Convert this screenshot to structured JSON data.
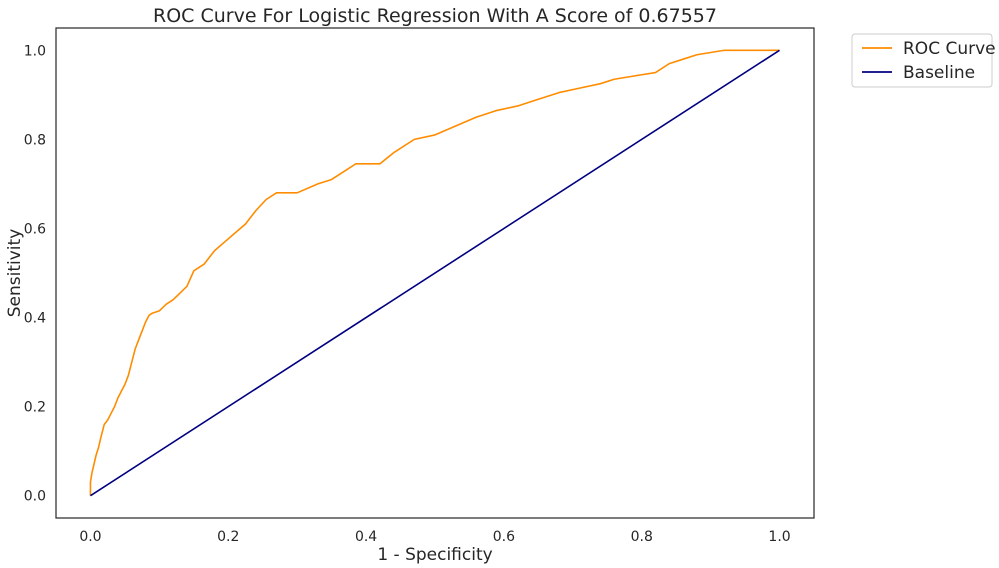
{
  "chart_data": {
    "type": "line",
    "title": "ROC Curve For Logistic Regression With A Score of 0.67557",
    "xlabel": "1 - Specificity",
    "ylabel": "Sensitivity",
    "xlim": [
      -0.05,
      1.05
    ],
    "ylim": [
      -0.05,
      1.05
    ],
    "xticks": [
      "0.0",
      "0.2",
      "0.4",
      "0.6",
      "0.8",
      "1.0"
    ],
    "yticks": [
      "0.0",
      "0.2",
      "0.4",
      "0.6",
      "0.8",
      "1.0"
    ],
    "grid": false,
    "legend_placement": "outside-top-right",
    "series": [
      {
        "name": "ROC Curve",
        "color": "#ff8c00",
        "x": [
          0.0,
          0.0,
          0.002,
          0.005,
          0.008,
          0.012,
          0.015,
          0.02,
          0.025,
          0.03,
          0.035,
          0.04,
          0.045,
          0.05,
          0.055,
          0.06,
          0.065,
          0.07,
          0.075,
          0.08,
          0.085,
          0.09,
          0.1,
          0.11,
          0.12,
          0.13,
          0.14,
          0.15,
          0.165,
          0.18,
          0.195,
          0.21,
          0.225,
          0.24,
          0.255,
          0.27,
          0.3,
          0.33,
          0.35,
          0.37,
          0.385,
          0.42,
          0.44,
          0.47,
          0.5,
          0.53,
          0.56,
          0.59,
          0.62,
          0.65,
          0.68,
          0.71,
          0.74,
          0.76,
          0.78,
          0.8,
          0.82,
          0.84,
          0.86,
          0.88,
          0.9,
          0.92,
          0.95,
          0.97,
          0.985,
          1.0
        ],
        "y": [
          0.0,
          0.03,
          0.05,
          0.07,
          0.09,
          0.11,
          0.13,
          0.16,
          0.17,
          0.185,
          0.2,
          0.22,
          0.235,
          0.25,
          0.27,
          0.3,
          0.33,
          0.35,
          0.37,
          0.39,
          0.405,
          0.41,
          0.415,
          0.43,
          0.44,
          0.455,
          0.47,
          0.505,
          0.52,
          0.55,
          0.57,
          0.59,
          0.61,
          0.64,
          0.665,
          0.68,
          0.68,
          0.7,
          0.71,
          0.73,
          0.745,
          0.745,
          0.77,
          0.8,
          0.81,
          0.83,
          0.85,
          0.865,
          0.875,
          0.89,
          0.905,
          0.915,
          0.925,
          0.935,
          0.94,
          0.945,
          0.95,
          0.97,
          0.98,
          0.99,
          0.995,
          1.0,
          1.0,
          1.0,
          1.0,
          1.0
        ]
      },
      {
        "name": "Baseline",
        "color": "#000080",
        "x": [
          0.0,
          1.0
        ],
        "y": [
          0.0,
          1.0
        ]
      }
    ]
  }
}
